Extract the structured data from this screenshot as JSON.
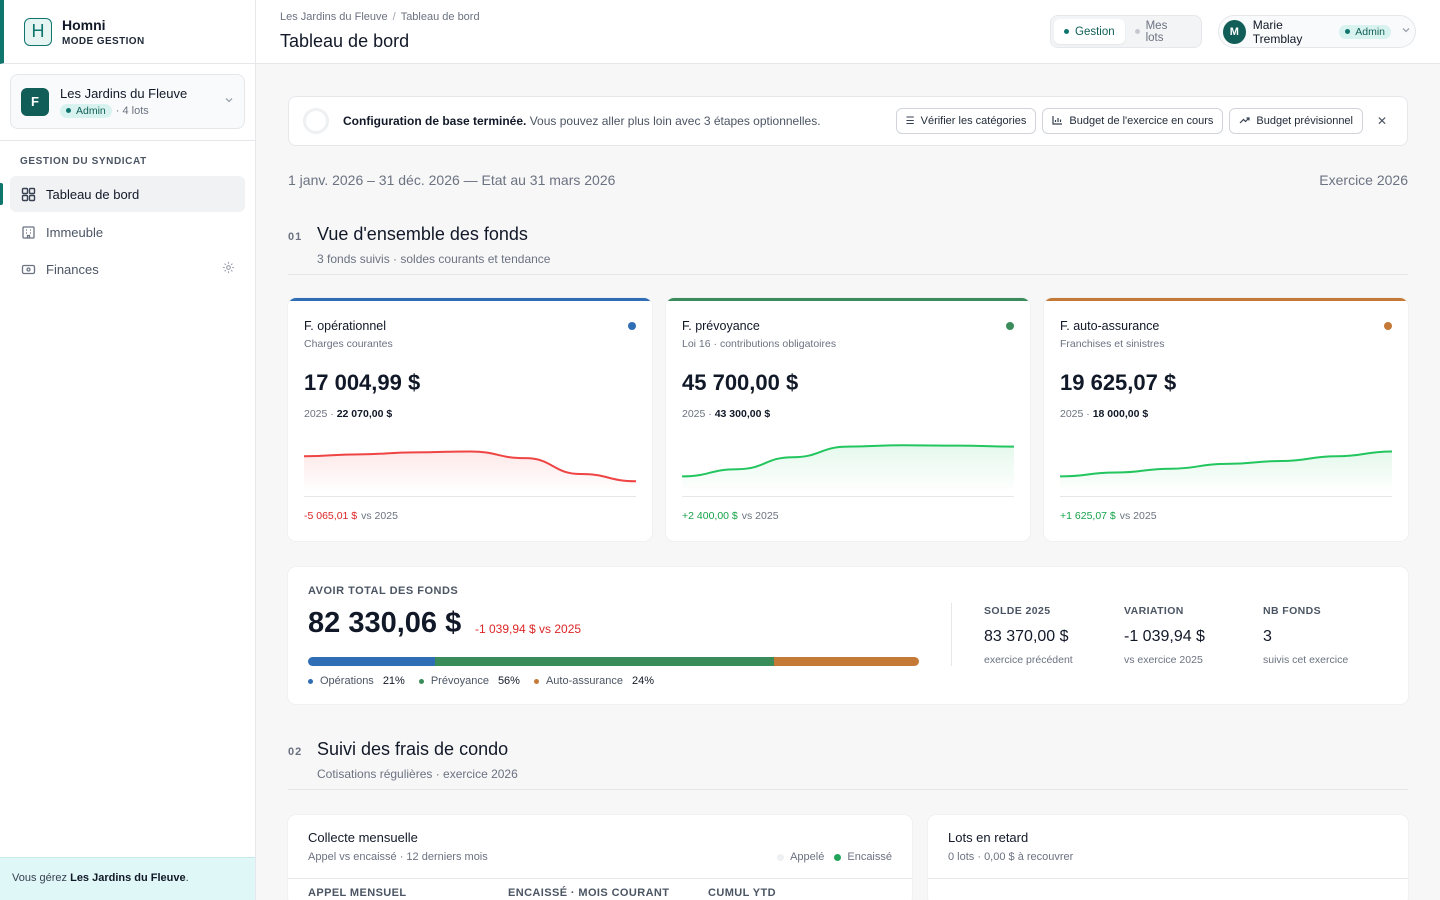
{
  "brand": {
    "logo_letter": "H",
    "name": "Homni",
    "subtitle": "MODE GESTION"
  },
  "organization": {
    "initial": "F",
    "name": "Les Jardins du Fleuve",
    "role": "Admin",
    "lots": "· 4 lots"
  },
  "sidebar": {
    "section_title": "GESTION DU SYNDICAT",
    "items": [
      {
        "label": "Tableau de bord",
        "icon": "dashboard-icon",
        "active": true
      },
      {
        "label": "Immeuble",
        "icon": "building-icon",
        "active": false
      },
      {
        "label": "Finances",
        "icon": "wallet-icon",
        "active": false
      }
    ],
    "footer_prefix": "Vous gérez ",
    "footer_org": "Les Jardins du Fleuve",
    "footer_suffix": "."
  },
  "header": {
    "breadcrumb": [
      "Les Jardins du Fleuve",
      "Tableau de bord"
    ],
    "breadcrumb_sep": "/",
    "title": "Tableau de bord",
    "modes": [
      {
        "label": "Gestion",
        "active": true
      },
      {
        "label": "Mes lots",
        "active": false
      }
    ],
    "user": {
      "initial": "M",
      "name": "Marie Tremblay",
      "role": "Admin"
    }
  },
  "banner": {
    "bold": "Configuration de base terminée.",
    "text": " Vous pouvez aller plus loin avec 3 étapes optionnelles.",
    "actions": [
      {
        "label": "Vérifier les catégories",
        "icon": "list-check-icon"
      },
      {
        "label": "Budget de l'exercice en cours",
        "icon": "bar-chart-icon"
      },
      {
        "label": "Budget prévisionnel",
        "icon": "trend-up-icon"
      }
    ],
    "close": "✕"
  },
  "period": {
    "range": "1 janv. 2026 – 31 déc. 2026 — Etat au 31 mars 2026",
    "exercice": "Exercice 2026"
  },
  "section1": {
    "num": "01",
    "title": "Vue d'ensemble des fonds",
    "subtitle": "3 fonds suivis · soldes courants et tendance"
  },
  "funds": [
    {
      "name": "F. opérationnel",
      "desc": "Charges courantes",
      "amount": "17 004,99 $",
      "prev_year": "2025 · ",
      "prev_amount": "22 070,00 $",
      "delta": "-5 065,01 $",
      "delta_suffix": "vs 2025",
      "trend": "neg",
      "color": "#2f6db5",
      "line_color": "#ef4444",
      "spark": [
        0.62,
        0.66,
        0.7,
        0.72,
        0.58,
        0.25,
        0.1
      ]
    },
    {
      "name": "F. prévoyance",
      "desc": "Loi 16 · contributions obligatoires",
      "amount": "45 700,00 $",
      "prev_year": "2025 · ",
      "prev_amount": "43 300,00 $",
      "delta": "+2 400,00 $",
      "delta_suffix": "vs 2025",
      "trend": "pos",
      "color": "#3a8c5a",
      "line_color": "#22c55e",
      "spark": [
        0.2,
        0.35,
        0.6,
        0.82,
        0.85,
        0.84,
        0.82
      ]
    },
    {
      "name": "F. auto-assurance",
      "desc": "Franchises et sinistres",
      "amount": "19 625,07 $",
      "prev_year": "2025 · ",
      "prev_amount": "18 000,00 $",
      "delta": "+1 625,07 $",
      "delta_suffix": "vs 2025",
      "trend": "pos",
      "color": "#c47a36",
      "line_color": "#22c55e",
      "spark": [
        0.2,
        0.28,
        0.36,
        0.46,
        0.52,
        0.62,
        0.72
      ]
    }
  ],
  "total": {
    "label": "AVOIR TOTAL DES FONDS",
    "amount": "82 330,06 $",
    "delta": "-1 039,94 $ vs 2025",
    "segments": [
      {
        "label": "Opérations",
        "pct": "21%",
        "share": 21,
        "color": "#2f6db5"
      },
      {
        "label": "Prévoyance",
        "pct": "56%",
        "share": 56,
        "color": "#3a8c5a"
      },
      {
        "label": "Auto-assurance",
        "pct": "24%",
        "share": 24,
        "color": "#c47a36"
      }
    ],
    "stats": [
      {
        "label": "SOLDE 2025",
        "value": "83 370,00 $",
        "sub": "exercice précédent",
        "tone": ""
      },
      {
        "label": "VARIATION",
        "value": "-1 039,94 $",
        "sub": "vs exercice 2025",
        "tone": "neg"
      },
      {
        "label": "NB FONDS",
        "value": "3",
        "sub": "suivis cet exercice",
        "tone": ""
      }
    ]
  },
  "section2": {
    "num": "02",
    "title": "Suivi des frais de condo",
    "subtitle": "Cotisations régulières · exercice 2026"
  },
  "collecte": {
    "title": "Collecte mensuelle",
    "subtitle": "Appel vs encaissé · 12 derniers mois",
    "legend": [
      {
        "label": "Appelé",
        "color": "#eef0f2"
      },
      {
        "label": "Encaissé",
        "color": "#22a35a"
      }
    ],
    "columns": [
      "APPEL MENSUEL",
      "ENCAISSÉ · MOIS COURANT",
      "CUMUL YTD"
    ]
  },
  "retard": {
    "title": "Lots en retard",
    "subtitle": "0 lots · 0,00 $ à recouvrer"
  }
}
